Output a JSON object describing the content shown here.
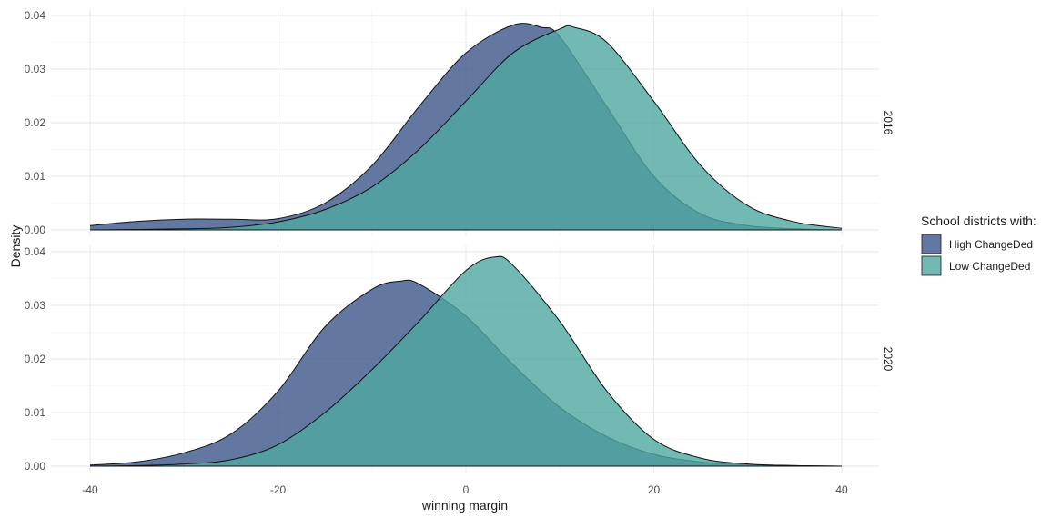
{
  "chart_data": {
    "type": "area",
    "subtype": "density",
    "xlabel": "winning margin",
    "ylabel": "Density",
    "xlim": [
      -40,
      40
    ],
    "x_ticks": [
      -40,
      -20,
      0,
      20,
      40
    ],
    "x_tick_labels": [
      "-40",
      "-20",
      "0",
      "20",
      "40"
    ],
    "ylim": [
      0,
      0.04
    ],
    "y_ticks": [
      0,
      0.01,
      0.02,
      0.03,
      0.04
    ],
    "y_tick_labels": [
      "0.00",
      "0.01",
      "0.02",
      "0.03",
      "0.04"
    ],
    "grid": true,
    "legend": {
      "title": "School districts with:",
      "position": "right",
      "entries": [
        "High ChangeDed",
        "Low ChangeDed"
      ]
    },
    "colors": {
      "High ChangeDed": "#3b5689",
      "Low ChangeDed": "#4fa8a0"
    },
    "panels": [
      {
        "facet": "2016",
        "series": [
          {
            "name": "High ChangeDed",
            "x": [
              -40,
              -35,
              -30,
              -25,
              -20,
              -15,
              -10,
              -5,
              0,
              5,
              8,
              10,
              15,
              20,
              25,
              30,
              35,
              40
            ],
            "y": [
              0.0008,
              0.0016,
              0.002,
              0.002,
              0.0021,
              0.005,
              0.012,
              0.023,
              0.033,
              0.0382,
              0.0378,
              0.036,
              0.023,
              0.01,
              0.003,
              0.0008,
              0.0002,
              0.0
            ]
          },
          {
            "name": "Low ChangeDed",
            "x": [
              -40,
              -30,
              -25,
              -20,
              -15,
              -10,
              -5,
              0,
              5,
              10,
              11.5,
              15,
              20,
              25,
              30,
              35,
              40
            ],
            "y": [
              0.0,
              0.0002,
              0.0005,
              0.0015,
              0.0038,
              0.008,
              0.015,
              0.024,
              0.033,
              0.0375,
              0.0378,
              0.035,
              0.024,
              0.012,
              0.0045,
              0.0015,
              0.0003
            ]
          }
        ]
      },
      {
        "facet": "2020",
        "series": [
          {
            "name": "High ChangeDed",
            "x": [
              -40,
              -35,
              -30,
              -25,
              -20,
              -15,
              -10,
              -7,
              -5,
              0,
              5,
              10,
              15,
              20,
              25,
              30,
              35,
              40
            ],
            "y": [
              0.0002,
              0.0008,
              0.0025,
              0.006,
              0.014,
              0.026,
              0.033,
              0.0345,
              0.034,
              0.028,
              0.019,
              0.011,
              0.0055,
              0.0022,
              0.0008,
              0.0003,
              0.0001,
              0.0
            ]
          },
          {
            "name": "Low ChangeDed",
            "x": [
              -40,
              -35,
              -30,
              -25,
              -20,
              -15,
              -10,
              -5,
              0,
              3,
              5,
              10,
              15,
              20,
              25,
              30,
              35,
              40
            ],
            "y": [
              0.0,
              0.0001,
              0.0004,
              0.0012,
              0.004,
              0.01,
              0.018,
              0.027,
              0.0365,
              0.039,
              0.0375,
              0.027,
              0.014,
              0.005,
              0.0015,
              0.0004,
              0.0001,
              0.0
            ]
          }
        ]
      }
    ]
  }
}
